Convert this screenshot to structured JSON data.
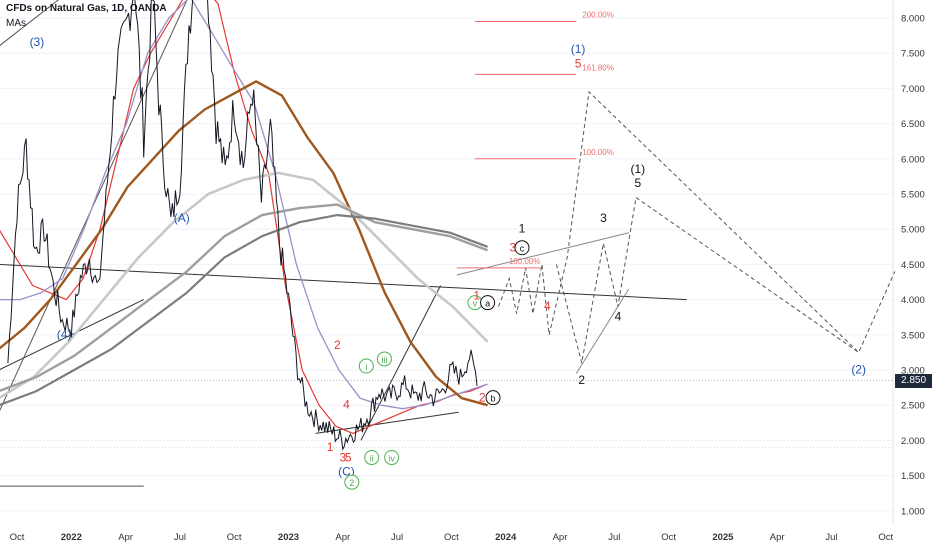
{
  "header": {
    "title": "CFDs on Natural Gas, 1D, OANDA",
    "indicator": "MAs"
  },
  "colors": {
    "candles": "#131722",
    "ma_red": "#e53935",
    "ma_purple": "#9c8fc9",
    "ma_brown": "#a0571c",
    "ma_lightgray": "#c8c8c8",
    "ma_gray": "#9e9e9e",
    "ma_darkgray": "#7d7d7d",
    "wave_blue": "#2155b5",
    "wave_red": "#e53935",
    "wave_green": "#4caf50",
    "fib": "#f26d6d",
    "axis_text": "#333333"
  },
  "chart_data": {
    "type": "line",
    "symbol": "CFDs on Natural Gas",
    "timeframe": "1D",
    "source": "OANDA",
    "y_axis": {
      "position": "right",
      "ylim": [
        0.75,
        8.25
      ],
      "ticks": [
        "1.000",
        "1.500",
        "2.000",
        "2.500",
        "3.000",
        "3.500",
        "4.000",
        "4.500",
        "5.000",
        "5.500",
        "6.000",
        "6.500",
        "7.000",
        "7.500",
        "8.000"
      ]
    },
    "x_axis": {
      "ticks": [
        {
          "label": "Oct",
          "m": 0
        },
        {
          "label": "2022",
          "m": 3
        },
        {
          "label": "Apr",
          "m": 6
        },
        {
          "label": "Jul",
          "m": 9
        },
        {
          "label": "Oct",
          "m": 12
        },
        {
          "label": "2023",
          "m": 15
        },
        {
          "label": "Apr",
          "m": 18
        },
        {
          "label": "Jul",
          "m": 21
        },
        {
          "label": "Oct",
          "m": 24
        },
        {
          "label": "2024",
          "m": 27
        },
        {
          "label": "Apr",
          "m": 30
        },
        {
          "label": "Jul",
          "m": 33
        },
        {
          "label": "Oct",
          "m": 36
        },
        {
          "label": "2025",
          "m": 39
        },
        {
          "label": "Apr",
          "m": 42
        },
        {
          "label": "Jul",
          "m": 45
        },
        {
          "label": "Oct",
          "m": 48
        }
      ]
    },
    "last_price": "2.850",
    "price_series": {
      "m": [
        -0.5,
        0,
        0.5,
        1,
        1.5,
        2,
        2.5,
        3,
        3.5,
        4,
        4.5,
        5,
        5.5,
        6,
        6.5,
        7,
        7.5,
        8,
        8.5,
        9,
        9.5,
        10,
        10.5,
        11,
        11.5,
        12,
        12.5,
        13,
        13.5,
        14,
        14.5,
        15,
        15.5,
        16,
        16.5,
        17,
        17.5,
        18,
        18.5,
        19,
        19.5,
        20,
        20.5,
        21,
        21.5,
        22,
        22.5,
        23,
        23.5,
        24,
        24.5,
        25,
        25.5
      ],
      "close": [
        3.1,
        5.3,
        6.2,
        4.7,
        5.0,
        4.2,
        3.7,
        3.6,
        4.3,
        4.6,
        4.1,
        5.7,
        7.3,
        7.8,
        8.5,
        6.3,
        8.3,
        6.2,
        5.1,
        5.7,
        7.9,
        9.1,
        8.6,
        6.5,
        5.8,
        6.8,
        5.9,
        7.0,
        5.4,
        6.4,
        4.8,
        4.0,
        3.0,
        2.5,
        2.3,
        2.2,
        2.1,
        2.0,
        2.1,
        2.2,
        2.4,
        2.7,
        2.6,
        2.7,
        2.8,
        2.6,
        2.7,
        2.6,
        2.7,
        3.0,
        2.9,
        3.2,
        2.85
      ]
    },
    "moving_averages": [
      {
        "color": "red",
        "values": [
          5.0,
          4.6,
          4.2,
          4.1,
          4.0,
          4.3,
          5.0,
          6.0,
          7.0,
          7.5,
          7.9,
          8.3,
          8.5,
          8.2,
          7.2,
          6.4,
          5.8,
          4.2,
          3.0,
          2.5,
          2.2,
          2.1,
          2.2,
          2.3,
          2.4,
          2.5,
          2.55,
          2.65,
          2.7,
          2.8
        ]
      },
      {
        "color": "purple",
        "values": [
          4.0,
          4.0,
          4.1,
          4.3,
          5.0,
          5.8,
          6.5,
          7.5,
          8.0,
          8.3,
          7.8,
          7.3,
          6.8,
          5.8,
          4.5,
          3.6,
          3.0,
          2.6,
          2.5,
          2.45,
          2.5,
          2.6,
          2.7,
          2.8
        ]
      },
      {
        "color": "brown",
        "values": [
          3.3,
          3.6,
          4.0,
          4.5,
          5.0,
          5.6,
          6.0,
          6.4,
          6.7,
          6.9,
          7.1,
          6.9,
          6.3,
          5.8,
          5.0,
          4.1,
          3.4,
          2.9,
          2.6,
          2.5
        ]
      },
      {
        "color": "lightgray",
        "values": [
          2.6,
          2.9,
          3.4,
          4.0,
          4.6,
          5.1,
          5.5,
          5.7,
          5.8,
          5.7,
          5.3,
          4.8,
          4.3,
          3.9,
          3.4
        ]
      },
      {
        "color": "gray",
        "values": [
          2.7,
          2.9,
          3.2,
          3.6,
          4.0,
          4.4,
          4.9,
          5.2,
          5.3,
          5.35,
          5.1,
          5.0,
          4.9,
          4.7
        ]
      },
      {
        "color": "darkgray",
        "values": [
          2.5,
          2.7,
          3.0,
          3.3,
          3.7,
          4.1,
          4.6,
          4.9,
          5.1,
          5.2,
          5.15,
          5.05,
          4.95,
          4.75
        ]
      }
    ],
    "fib_levels": [
      {
        "label": "200.00%",
        "y": 7.95
      },
      {
        "label": "161.80%",
        "y": 7.2
      },
      {
        "label": "100.00%",
        "y": 6.0
      },
      {
        "label": "100.00%",
        "y": 4.45
      }
    ],
    "labels": [
      {
        "text": "(3)",
        "m": 1.1,
        "y": 7.6,
        "color": "blue"
      },
      {
        "text": "(4)",
        "m": 2.6,
        "y": 3.45,
        "color": "blue"
      },
      {
        "text": "(A)",
        "m": 9.1,
        "y": 5.1,
        "color": "blue"
      },
      {
        "text": "1",
        "m": 17.3,
        "y": 1.85,
        "color": "red"
      },
      {
        "text": "2",
        "m": 17.7,
        "y": 3.3,
        "color": "red"
      },
      {
        "text": "4",
        "m": 18.2,
        "y": 2.45,
        "color": "red"
      },
      {
        "text": "3",
        "m": 18.0,
        "y": 1.7,
        "color": "red"
      },
      {
        "text": "5",
        "m": 18.3,
        "y": 1.7,
        "color": "red"
      },
      {
        "text": "(C)",
        "m": 18.2,
        "y": 1.5,
        "color": "blue"
      },
      {
        "text": "i",
        "m": 19.3,
        "y": 3.0,
        "color": "green"
      },
      {
        "text": "iii",
        "m": 20.3,
        "y": 3.1,
        "color": "green"
      },
      {
        "text": "ii",
        "m": 19.6,
        "y": 1.7,
        "color": "green"
      },
      {
        "text": "iv",
        "m": 20.7,
        "y": 1.7,
        "color": "green"
      },
      {
        "text": "2",
        "m": 18.5,
        "y": 1.35,
        "color": "green"
      },
      {
        "text": "v",
        "m": 25.3,
        "y": 3.9,
        "color": "green"
      },
      {
        "text": "a",
        "m": 26.0,
        "y": 3.9,
        "color": "black"
      },
      {
        "text": "1",
        "m": 25.4,
        "y": 4.0,
        "color": "red"
      },
      {
        "text": "2",
        "m": 25.7,
        "y": 2.55,
        "color": "red"
      },
      {
        "text": "b",
        "m": 26.3,
        "y": 2.55,
        "color": "black"
      },
      {
        "text": "3",
        "m": 27.4,
        "y": 4.68,
        "color": "red"
      },
      {
        "text": "c",
        "m": 27.9,
        "y": 4.68,
        "color": "black"
      },
      {
        "text": "1",
        "m": 27.9,
        "y": 4.95,
        "color": "black"
      },
      {
        "text": "4",
        "m": 29.3,
        "y": 3.85,
        "color": "red"
      },
      {
        "text": "(1)",
        "m": 31.0,
        "y": 7.5,
        "color": "blue"
      },
      {
        "text": "5",
        "m": 31.0,
        "y": 7.3,
        "color": "red"
      },
      {
        "text": "2",
        "m": 31.2,
        "y": 2.8,
        "color": "black"
      },
      {
        "text": "3",
        "m": 32.4,
        "y": 5.1,
        "color": "black"
      },
      {
        "text": "4",
        "m": 33.2,
        "y": 3.7,
        "color": "black"
      },
      {
        "text": "(1)",
        "m": 34.3,
        "y": 5.8,
        "color": "black"
      },
      {
        "text": "5",
        "m": 34.3,
        "y": 5.6,
        "color": "black"
      },
      {
        "text": "(2)",
        "m": 46.5,
        "y": 2.95,
        "color": "blue"
      }
    ],
    "projection": [
      {
        "m": 26.6,
        "y": 3.9
      },
      {
        "m": 27.2,
        "y": 4.3
      },
      {
        "m": 27.6,
        "y": 3.8
      },
      {
        "m": 28.1,
        "y": 4.45
      },
      {
        "m": 28.5,
        "y": 3.8
      },
      {
        "m": 29.0,
        "y": 4.5
      },
      {
        "m": 29.4,
        "y": 3.5
      },
      {
        "m": 30.4,
        "y": 4.6
      },
      {
        "m": 31.6,
        "y": 6.95
      },
      {
        "m": 46.5,
        "y": 3.25
      },
      {
        "m": 48.5,
        "y": 4.4
      }
    ],
    "projection_alt": [
      {
        "m": 29.8,
        "y": 4.5
      },
      {
        "m": 31.2,
        "y": 3.1
      },
      {
        "m": 32.4,
        "y": 4.8
      },
      {
        "m": 33.2,
        "y": 3.9
      },
      {
        "m": 34.2,
        "y": 5.45
      },
      {
        "m": 46.5,
        "y": 3.25
      }
    ]
  }
}
